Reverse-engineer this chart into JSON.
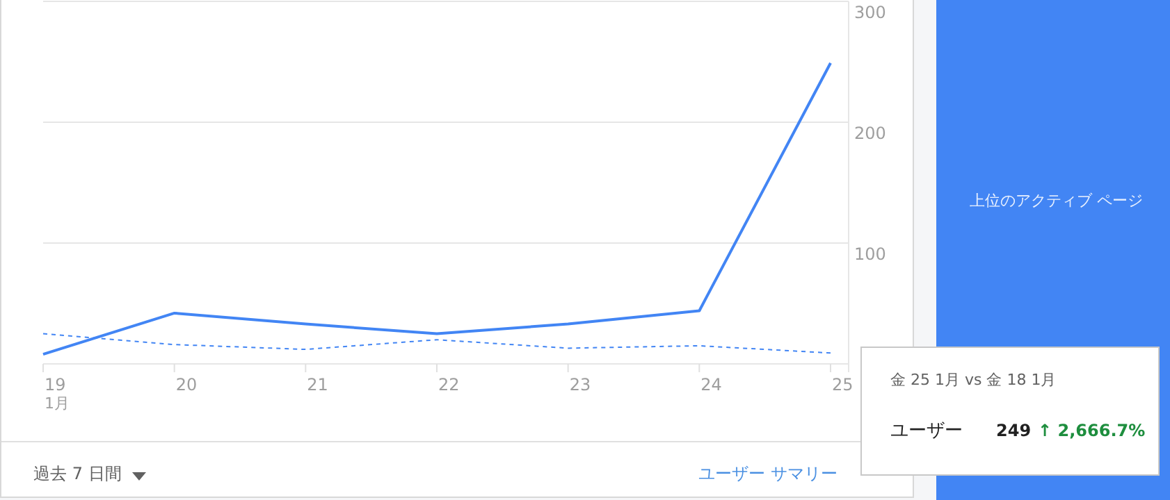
{
  "chart_data": {
    "type": "line",
    "categories": [
      "19",
      "20",
      "21",
      "22",
      "23",
      "24",
      "25"
    ],
    "series": [
      {
        "color": "#4285f4",
        "values": [
          8,
          42,
          33,
          25,
          33,
          44,
          249
        ]
      },
      {
        "color": "#4285f4",
        "values": [
          25,
          16,
          12,
          20,
          13,
          15,
          9
        ],
        "line_style": "dashed"
      }
    ],
    "ylim": [
      0,
      300
    ],
    "yticks": [
      100,
      200,
      300
    ],
    "grid": "y",
    "annotations": [
      "1月",
      "金 25 1月 vs 金 18 1月",
      "ユーザー",
      "249",
      "↑ 2,666.7%",
      "過去 7 日間",
      "ユーザー サマリー",
      "上位のアクティブ ページ"
    ]
  }
}
